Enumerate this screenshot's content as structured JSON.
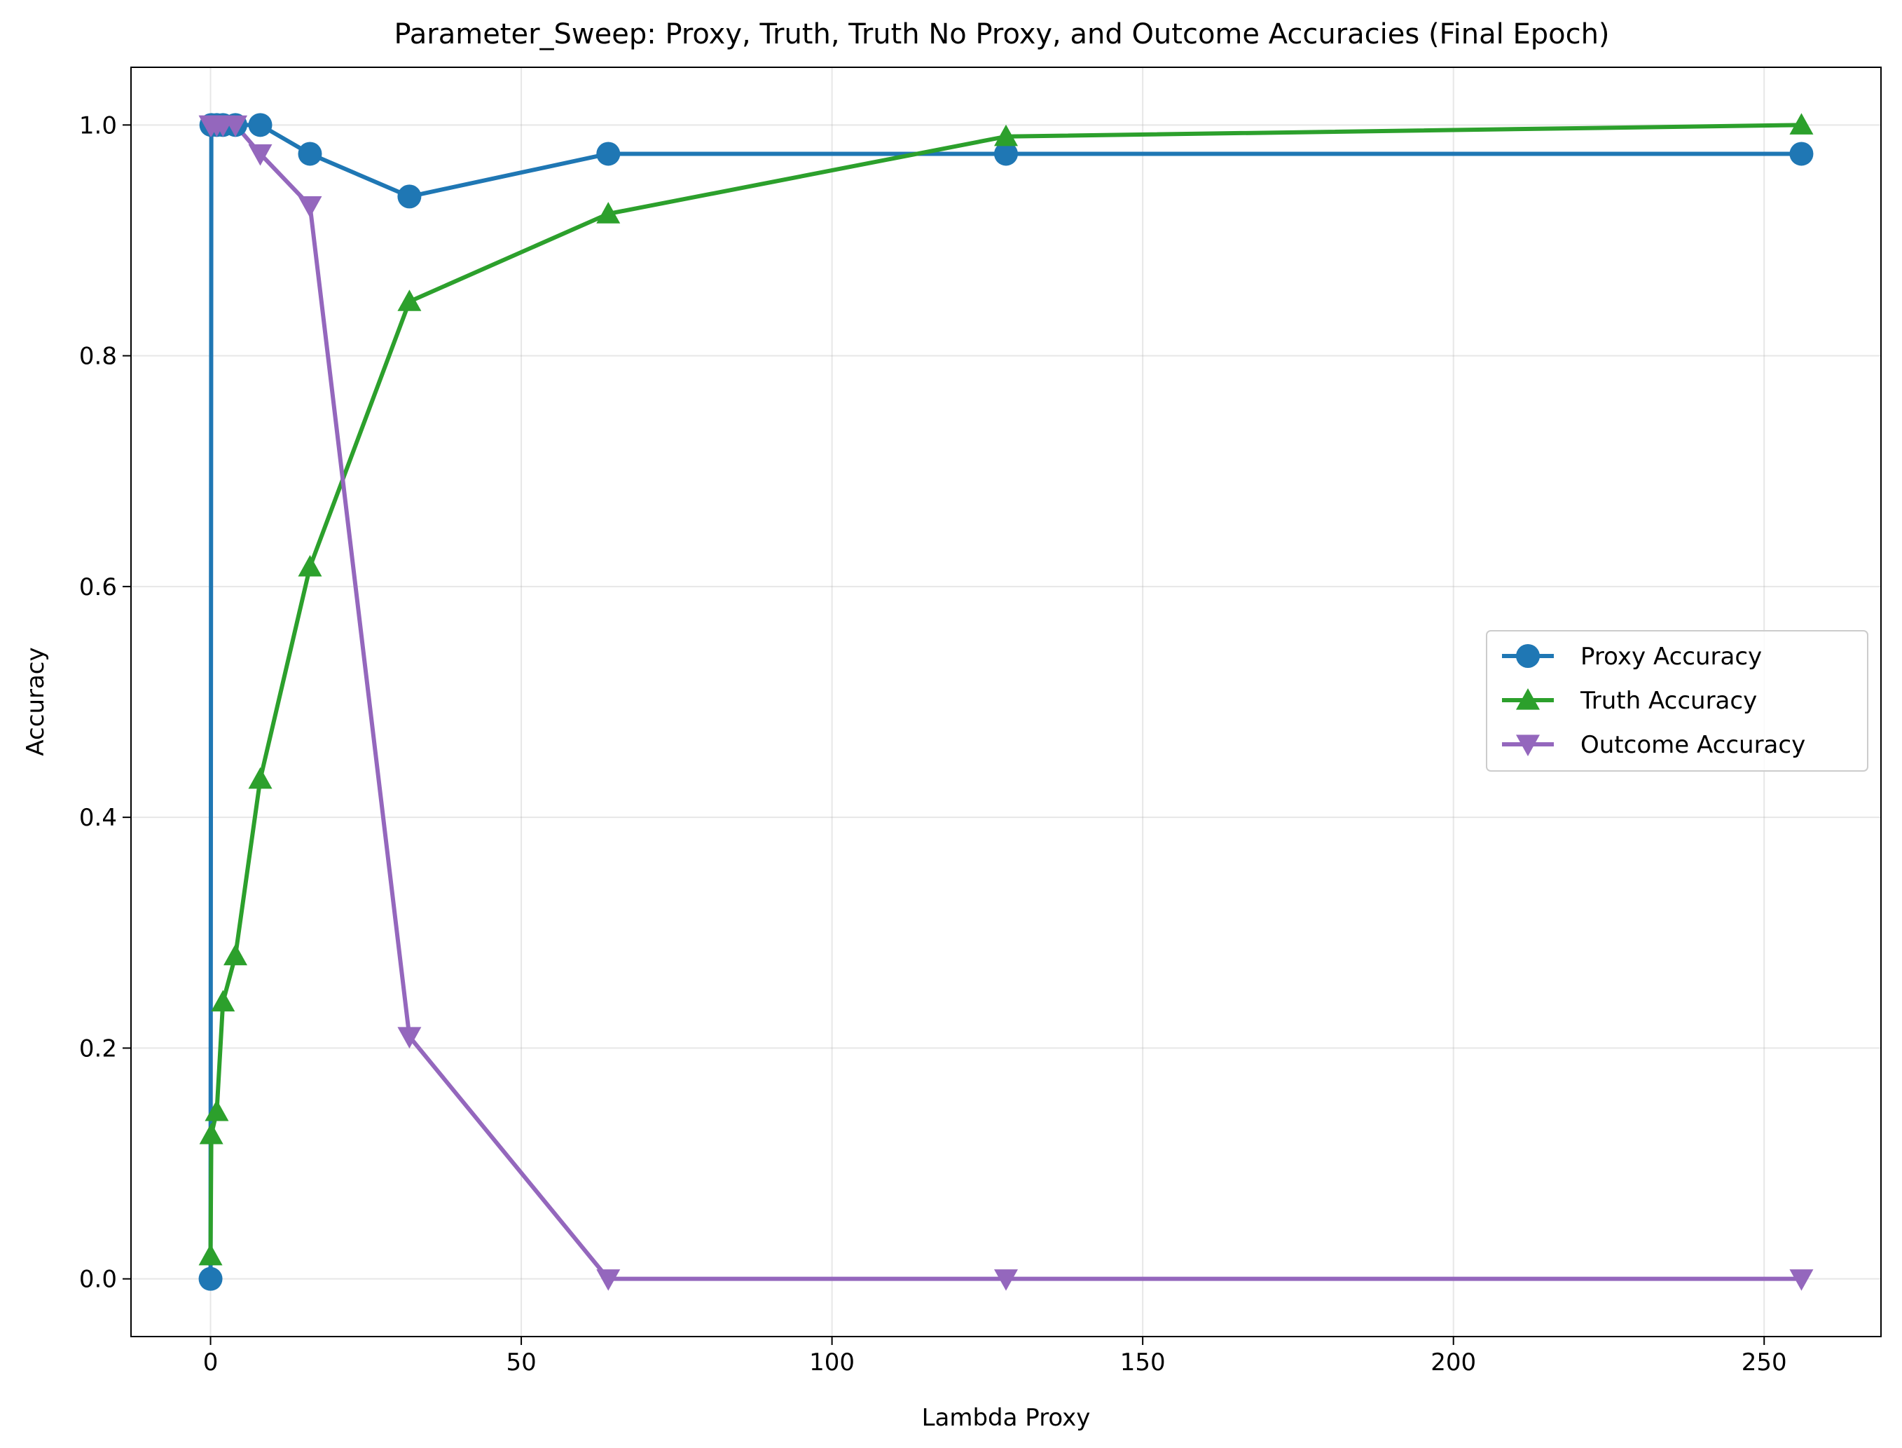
{
  "chart_data": {
    "type": "line",
    "title": "Parameter_Sweep: Proxy, Truth, Truth No Proxy, and Outcome Accuracies (Final Epoch)",
    "xlabel": "Lambda Proxy",
    "ylabel": "Accuracy",
    "xlim": [
      -12.8,
      268.8
    ],
    "ylim": [
      -0.05,
      1.05
    ],
    "x_ticks": [
      0,
      50,
      100,
      150,
      200,
      250
    ],
    "y_ticks": [
      0.0,
      0.2,
      0.4,
      0.6,
      0.8,
      1.0
    ],
    "x_tick_labels": [
      "0",
      "50",
      "100",
      "150",
      "200",
      "250"
    ],
    "y_tick_labels": [
      "0.0",
      "0.2",
      "0.4",
      "0.6",
      "0.8",
      "1.0"
    ],
    "grid": true,
    "legend_position": "center-right",
    "series": [
      {
        "name": "Proxy Accuracy",
        "color": "#1f77b4",
        "marker": "circle",
        "x": [
          0,
          0.125,
          1,
          2,
          4,
          8,
          16,
          32,
          64,
          128,
          256
        ],
        "y": [
          0.0,
          1.0,
          1.0,
          1.0,
          1.0,
          1.0,
          0.975,
          0.938,
          0.975,
          0.975,
          0.975
        ]
      },
      {
        "name": "Truth Accuracy",
        "color": "#2ca02c",
        "marker": "triangle-up",
        "x": [
          0,
          0.125,
          1,
          2,
          4,
          8,
          16,
          32,
          64,
          128,
          256
        ],
        "y": [
          0.02,
          0.125,
          0.145,
          0.24,
          0.28,
          0.433,
          0.617,
          0.847,
          0.923,
          0.99,
          1.0
        ]
      },
      {
        "name": "Outcome Accuracy",
        "color": "#9467bd",
        "marker": "triangle-down",
        "x": [
          0,
          0.125,
          1,
          2,
          4,
          8,
          16,
          32,
          64,
          128,
          256
        ],
        "y": [
          1.0,
          1.0,
          1.0,
          1.0,
          1.0,
          0.975,
          0.93,
          0.21,
          0.0,
          0.0,
          0.0
        ]
      }
    ]
  }
}
